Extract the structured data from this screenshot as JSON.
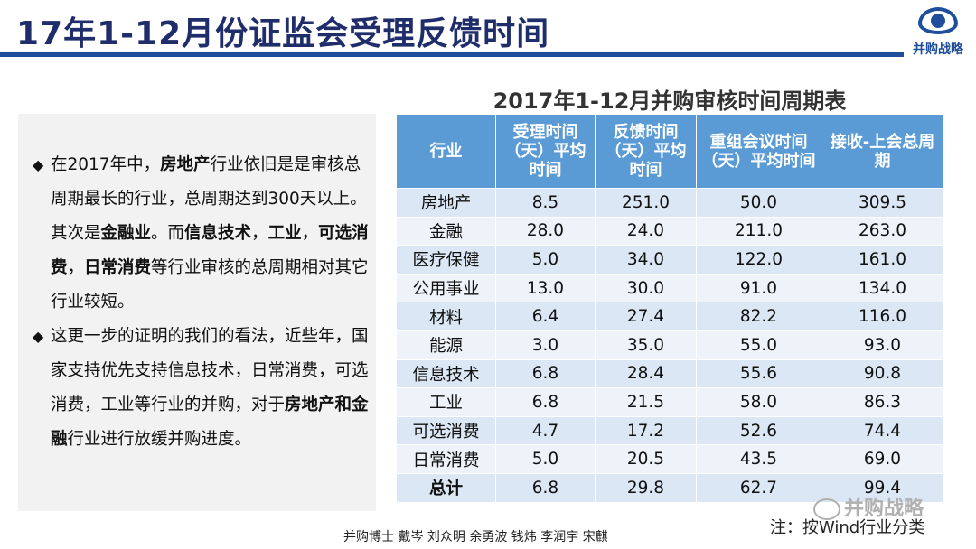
{
  "title": "17年1-12月份证监会受理反馈时间",
  "logo_text": "并购战略",
  "logo_icon": "eye-icon",
  "table_title": "2017年1-12月并购审核时间周期表",
  "paragraphs": [
    {
      "segments": [
        {
          "t": "在2017年中，",
          "b": false
        },
        {
          "t": "房地产",
          "b": true
        },
        {
          "t": "行业依旧是是审核总周期最长的行业，总周期达到300天以上。其次是",
          "b": false
        },
        {
          "t": "金融业",
          "b": true
        },
        {
          "t": "。而",
          "b": false
        },
        {
          "t": "信息技术",
          "b": true
        },
        {
          "t": "，",
          "b": false
        },
        {
          "t": "工业",
          "b": true
        },
        {
          "t": "，",
          "b": false
        },
        {
          "t": "可选消费",
          "b": true
        },
        {
          "t": "，",
          "b": false
        },
        {
          "t": "日常消费",
          "b": true
        },
        {
          "t": "等行业审核的总周期相对其它行业较短。",
          "b": false
        }
      ]
    },
    {
      "segments": [
        {
          "t": "这更一步的证明的我们的看法，近些年，国家支持优先支持信息技术，日常消费，可选消费，工业等行业的并购，对于",
          "b": false
        },
        {
          "t": "房地产",
          "b": true
        },
        {
          "t": "和",
          "b": true
        },
        {
          "t": "金融",
          "b": true
        },
        {
          "t": "行业进行放缓并购进度。",
          "b": false
        }
      ]
    }
  ],
  "table": {
    "headers": [
      "行业",
      "受理时间（天）平均时间",
      "反馈时间（天）平均时间",
      "重组会议时间（天）平均时间",
      "接收-上会总周期"
    ],
    "rows": [
      [
        "房地产",
        "8.5",
        "251.0",
        "50.0",
        "309.5"
      ],
      [
        "金融",
        "28.0",
        "24.0",
        "211.0",
        "263.0"
      ],
      [
        "医疗保健",
        "5.0",
        "34.0",
        "122.0",
        "161.0"
      ],
      [
        "公用事业",
        "13.0",
        "30.0",
        "91.0",
        "134.0"
      ],
      [
        "材料",
        "6.4",
        "27.4",
        "82.2",
        "116.0"
      ],
      [
        "能源",
        "3.0",
        "35.0",
        "55.0",
        "93.0"
      ],
      [
        "信息技术",
        "6.8",
        "28.4",
        "55.6",
        "90.8"
      ],
      [
        "工业",
        "6.8",
        "21.5",
        "58.0",
        "86.3"
      ],
      [
        "可选消费",
        "4.7",
        "17.2",
        "52.6",
        "74.4"
      ],
      [
        "日常消费",
        "5.0",
        "20.5",
        "43.5",
        "69.0"
      ],
      [
        "总计",
        "6.8",
        "29.8",
        "62.7",
        "99.4"
      ]
    ]
  },
  "authors": "并购博士 戴岑 刘众明 余勇波 钱炜 李润宇 宋麒",
  "note": "注：按Wind行业分类",
  "watermark": "并购战略",
  "watermark_icon": "wechat-icon",
  "colors": {
    "title": "#1f2d6b",
    "rule": "#1f4e9c",
    "header_bg": "#5b9bd5",
    "row_odd": "#dbe7f4",
    "row_even": "#eef3fa",
    "panel_bg": "#f2f2f2"
  }
}
